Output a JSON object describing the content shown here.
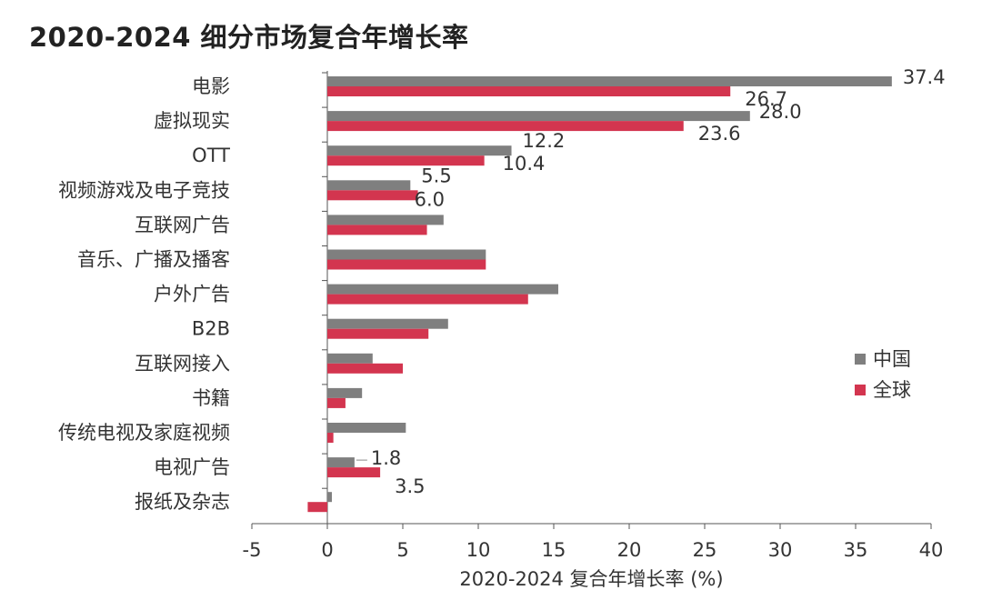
{
  "title": "2020-2024 细分市场复合年增长率",
  "chart_data": {
    "type": "bar",
    "orientation": "horizontal",
    "xlabel": "2020-2024 复合年增长率 (%)",
    "xlim": [
      -5,
      40
    ],
    "xticks": [
      -5,
      0,
      5,
      10,
      15,
      20,
      25,
      30,
      35,
      40
    ],
    "categories": [
      "电影",
      "虚拟现实",
      "OTT",
      "视频游戏及电子竞技",
      "互联网广告",
      "音乐、广播及播客",
      "户外广告",
      "B2B",
      "互联网接入",
      "书籍",
      "传统电视及家庭视频",
      "电视广告",
      "报纸及杂志"
    ],
    "series": [
      {
        "name": "中国",
        "color": "#7f7f7f",
        "values": [
          37.4,
          28.0,
          12.2,
          5.5,
          7.7,
          10.5,
          15.3,
          8.0,
          3.0,
          2.3,
          5.2,
          1.8,
          0.3
        ],
        "labels": [
          "37.4",
          "28.0",
          "12.2",
          "5.5",
          null,
          null,
          null,
          null,
          null,
          null,
          null,
          "1.8",
          null
        ]
      },
      {
        "name": "全球",
        "color": "#d3354f",
        "values": [
          26.7,
          23.6,
          10.4,
          6.0,
          6.6,
          10.5,
          13.3,
          6.7,
          5.0,
          1.2,
          0.4,
          3.5,
          -1.3
        ],
        "labels": [
          "26.7",
          "23.6",
          "10.4",
          "6.0",
          null,
          null,
          null,
          null,
          null,
          null,
          null,
          "3.5",
          null
        ]
      }
    ],
    "legend_position": "right",
    "grid": false
  }
}
